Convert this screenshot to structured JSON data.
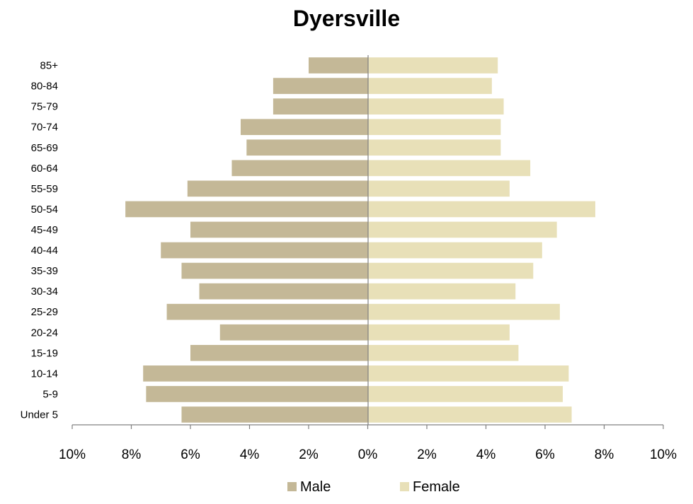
{
  "chart_data": {
    "type": "bar",
    "orientation": "horizontal",
    "layout": "population-pyramid",
    "title": "Dyersville",
    "categories": [
      "Under 5",
      "5-9",
      "10-14",
      "15-19",
      "20-24",
      "25-29",
      "30-34",
      "35-39",
      "40-44",
      "45-49",
      "50-54",
      "55-59",
      "60-64",
      "65-69",
      "70-74",
      "75-79",
      "80-84",
      "85+"
    ],
    "series": [
      {
        "name": "Male",
        "side": "left",
        "color": "#c4b897",
        "values": [
          6.3,
          7.5,
          7.6,
          6.0,
          5.0,
          6.8,
          5.7,
          6.3,
          7.0,
          6.0,
          8.2,
          6.1,
          4.6,
          4.1,
          4.3,
          3.2,
          3.2,
          2.0
        ]
      },
      {
        "name": "Female",
        "side": "right",
        "color": "#e8e0b8",
        "values": [
          6.9,
          6.6,
          6.8,
          5.1,
          4.8,
          6.5,
          5.0,
          5.6,
          5.9,
          6.4,
          7.7,
          4.8,
          5.5,
          4.5,
          4.5,
          4.6,
          4.2,
          4.4
        ]
      }
    ],
    "xlim": [
      -10,
      10
    ],
    "x_ticks": [
      -10,
      -8,
      -6,
      -4,
      -2,
      0,
      2,
      4,
      6,
      8,
      10
    ],
    "x_tick_labels": [
      "10%",
      "8%",
      "6%",
      "4%",
      "2%",
      "0%",
      "2%",
      "4%",
      "6%",
      "8%",
      "10%"
    ],
    "grid": false,
    "legend_position": "bottom",
    "axis_color": "#808080"
  }
}
